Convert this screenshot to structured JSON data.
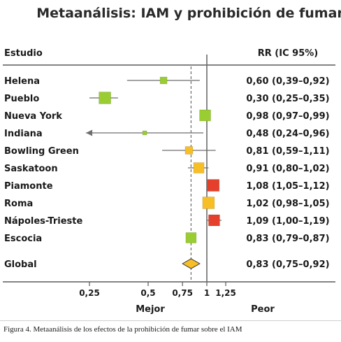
{
  "chart_data": {
    "type": "forest",
    "title": "Metaanálisis: IAM y prohibición de fumar",
    "column_study_header": "Estudio",
    "column_rr_header": "RR (IC 95%)",
    "scale": "log",
    "xlim": [
      0.18,
      1.9
    ],
    "x_ticks": [
      {
        "value": 0.25,
        "label": "0,25"
      },
      {
        "value": 0.5,
        "label": "0,5"
      },
      {
        "value": 0.75,
        "label": "0,75"
      },
      {
        "value": 1,
        "label": "1"
      },
      {
        "value": 1.25,
        "label": "1,25"
      }
    ],
    "reference_value": 1,
    "pooled_reference_value": 0.83,
    "direction_labels": {
      "left": "Mejor",
      "right": "Peor"
    },
    "studies": [
      {
        "name": "Helena",
        "rr": 0.6,
        "lo": 0.39,
        "hi": 0.92,
        "label": "0,60 (0,39–0,92)",
        "color": "#9acd32",
        "weight": 10
      },
      {
        "name": "Pueblo",
        "rr": 0.3,
        "lo": 0.25,
        "hi": 0.35,
        "label": "0,30 (0,25–0,35)",
        "color": "#9acd32",
        "weight": 17
      },
      {
        "name": "Nueva York",
        "rr": 0.98,
        "lo": 0.97,
        "hi": 0.99,
        "label": "0,98 (0,97–0,99)",
        "color": "#9acd32",
        "weight": 16
      },
      {
        "name": "Indiana",
        "rr": 0.48,
        "lo": 0.24,
        "hi": 0.96,
        "label": "0,48 (0,24–0,96)",
        "color": "#9acd32",
        "weight": 6,
        "lower_arrow": true
      },
      {
        "name": "Bowling Green",
        "rr": 0.81,
        "lo": 0.59,
        "hi": 1.11,
        "label": "0,81 (0,59–1,11)",
        "color": "#f7be26",
        "weight": 11
      },
      {
        "name": "Saskatoon",
        "rr": 0.91,
        "lo": 0.8,
        "hi": 1.02,
        "label": "0,91 (0,80–1,02)",
        "color": "#f7be26",
        "weight": 15
      },
      {
        "name": "Piamonte",
        "rr": 1.08,
        "lo": 1.05,
        "hi": 1.12,
        "label": "1,08 (1,05–1,12)",
        "color": "#e4402b",
        "weight": 17
      },
      {
        "name": "Roma",
        "rr": 1.02,
        "lo": 0.98,
        "hi": 1.05,
        "label": "1,02 (0,98–1,05)",
        "color": "#f7be26",
        "weight": 17
      },
      {
        "name": "Nápoles-Trieste",
        "rr": 1.09,
        "lo": 1.0,
        "hi": 1.19,
        "label": "1,09 (1,00–1,19)",
        "color": "#e4402b",
        "weight": 16
      },
      {
        "name": "Escocia",
        "rr": 0.83,
        "lo": 0.79,
        "hi": 0.87,
        "label": "0,83 (0,79–0,87)",
        "color": "#9acd32",
        "weight": 15
      }
    ],
    "overall": {
      "name": "Global",
      "rr": 0.83,
      "lo": 0.75,
      "hi": 0.92,
      "label": "0,83 (0,75–0,92)",
      "color": "#f7be26"
    }
  },
  "caption": "Figura 4. Metaanálisis de los efectos de la prohibición de fumar sobre el IAM"
}
